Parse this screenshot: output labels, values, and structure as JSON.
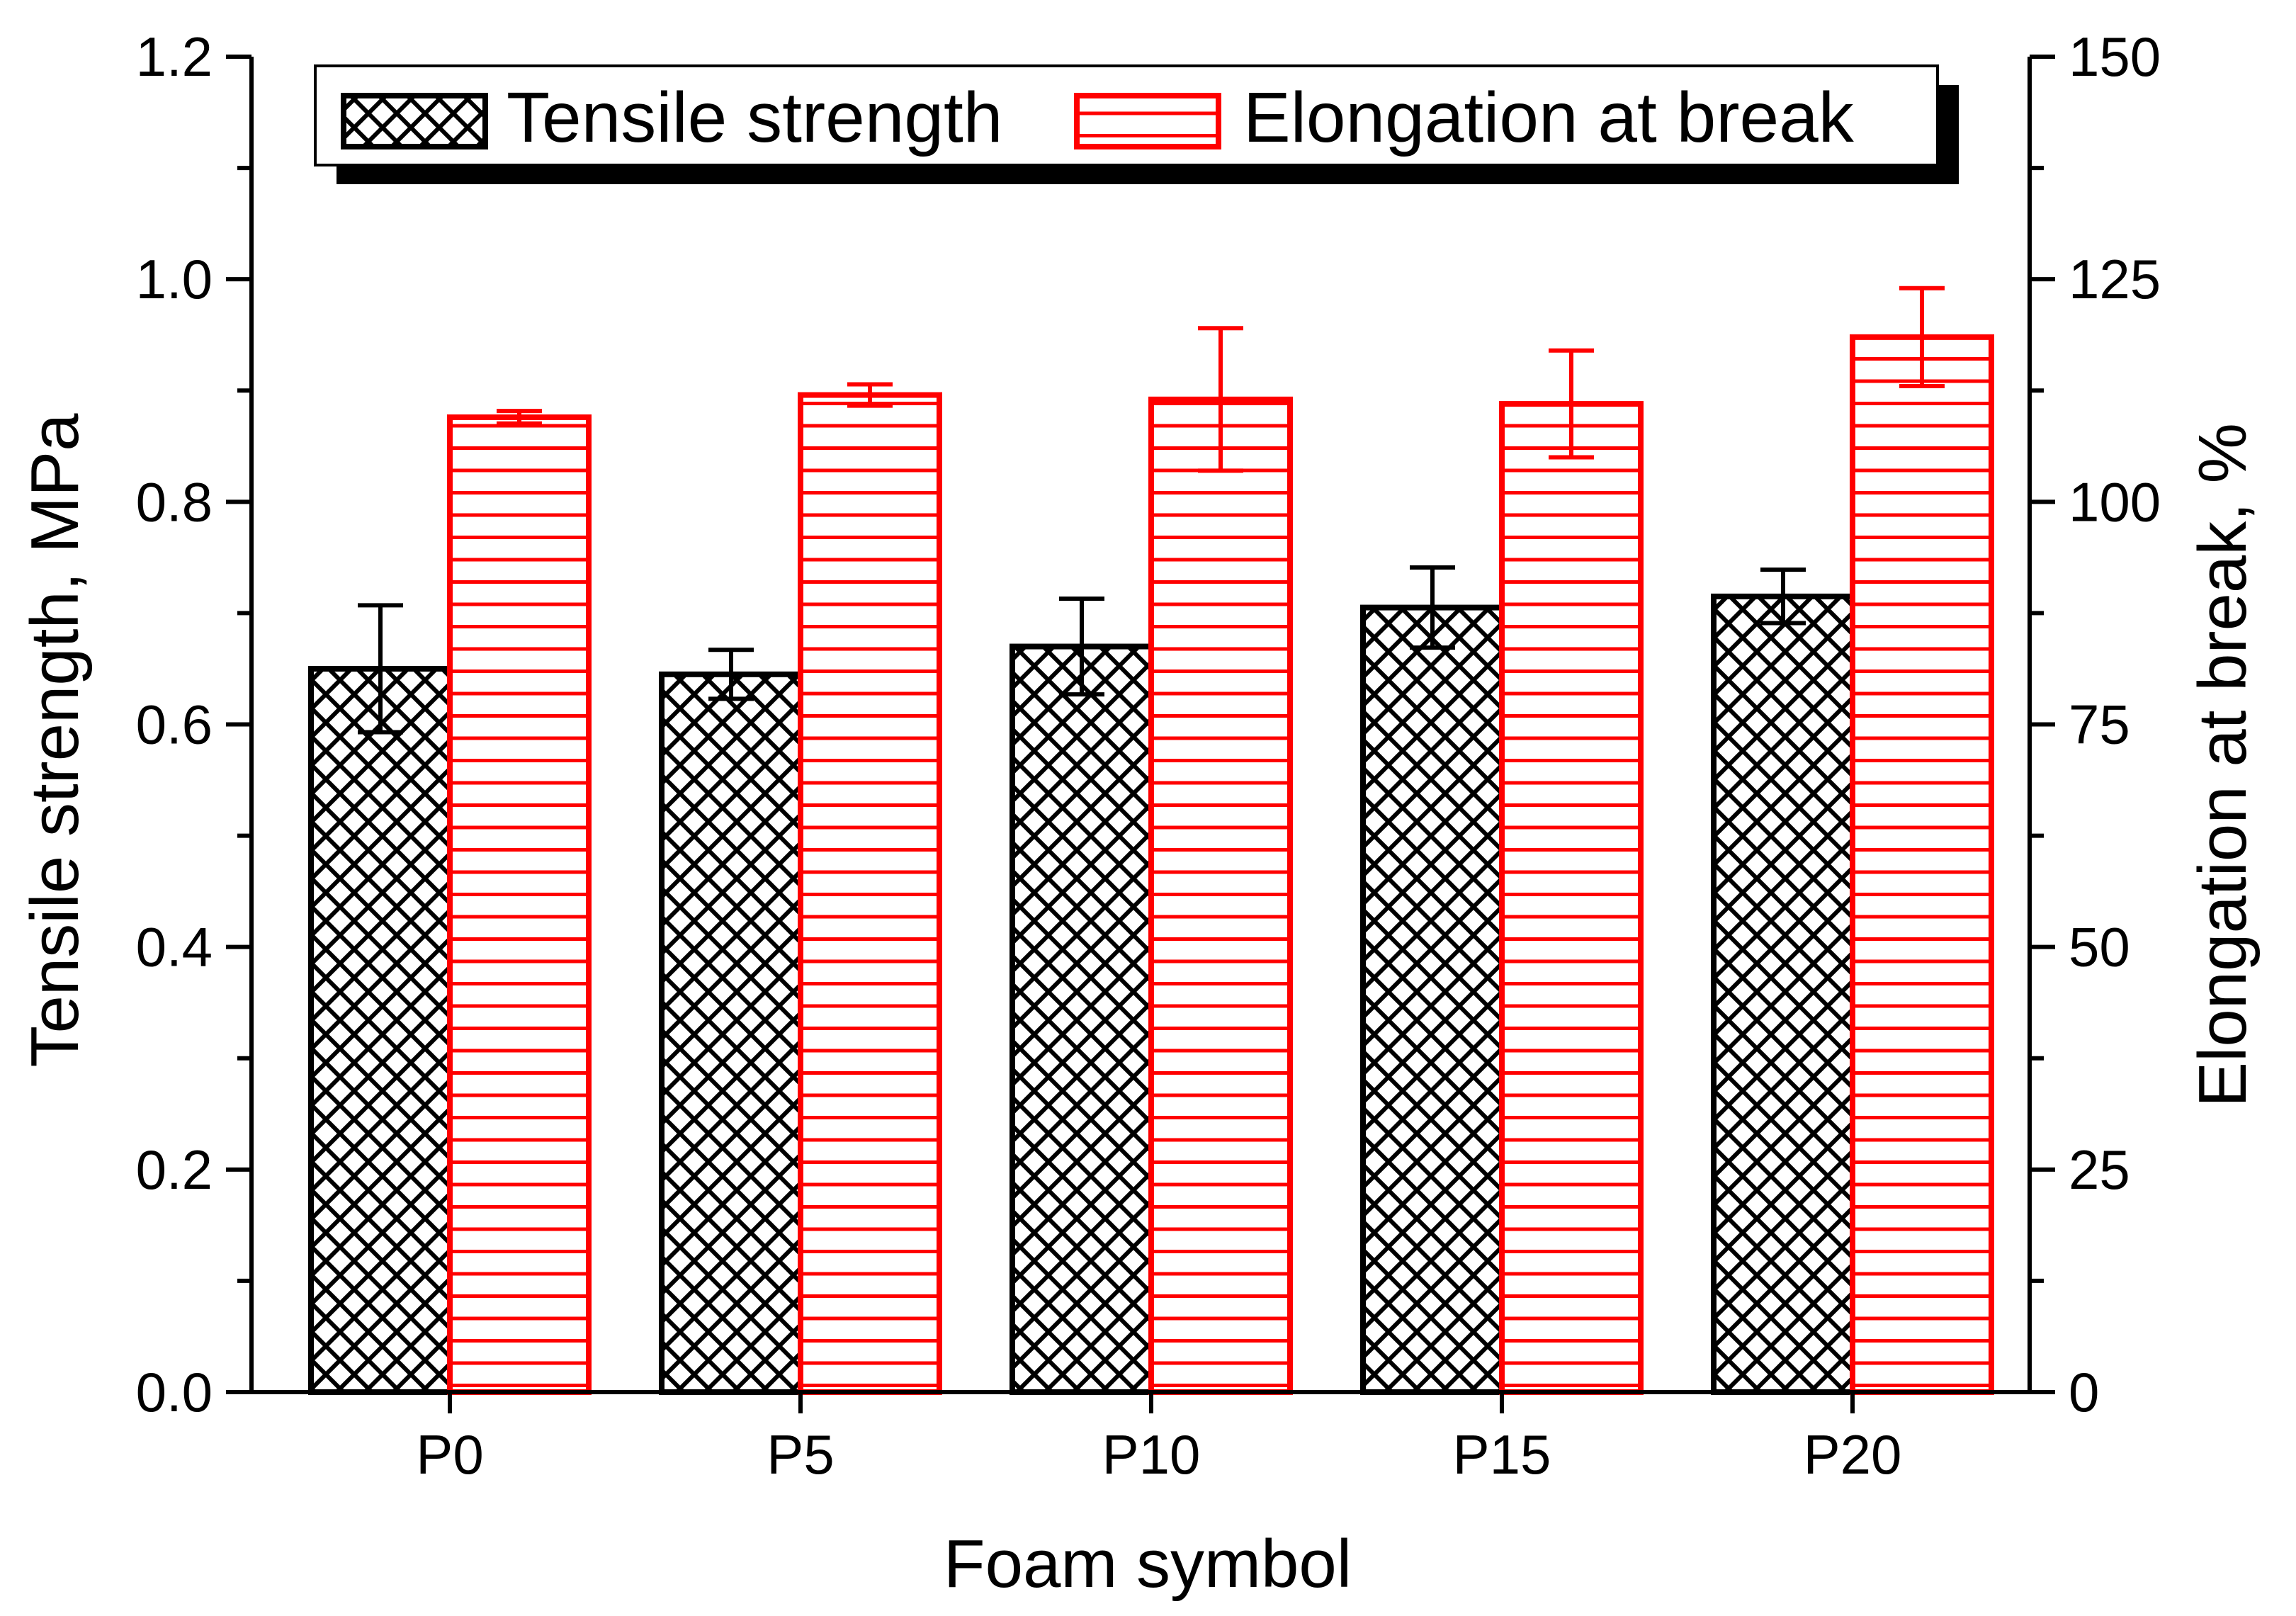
{
  "chart_data": {
    "type": "bar",
    "categories": [
      "P0",
      "P5",
      "P10",
      "P15",
      "P20"
    ],
    "xlabel": "Foam symbol",
    "ylabel_left": "Tensile strength, MPa",
    "ylabel_right": "Elongation at break, %",
    "ylim_left": [
      0,
      1.2
    ],
    "ylim_right": [
      0,
      150
    ],
    "yticks_left": [
      "0.0",
      "0.2",
      "0.4",
      "0.6",
      "0.8",
      "1.0",
      "1.2"
    ],
    "yticks_right": [
      "0",
      "25",
      "50",
      "75",
      "100",
      "125",
      "150"
    ],
    "legend_position": "top",
    "series": [
      {
        "name": "Tensile strength",
        "axis": "left",
        "color": "#000000",
        "pattern": "crosshatch",
        "values": [
          0.65,
          0.645,
          0.67,
          0.705,
          0.715
        ],
        "errors": [
          0.057,
          0.022,
          0.043,
          0.036,
          0.024
        ]
      },
      {
        "name": "Elongation at break",
        "axis": "right",
        "color": "#ff0000",
        "pattern": "horizontal-lines",
        "values": [
          109.5,
          112,
          111.5,
          111,
          118.5
        ],
        "errors": [
          0.7,
          1.2,
          8.0,
          6.0,
          5.5
        ]
      }
    ]
  }
}
